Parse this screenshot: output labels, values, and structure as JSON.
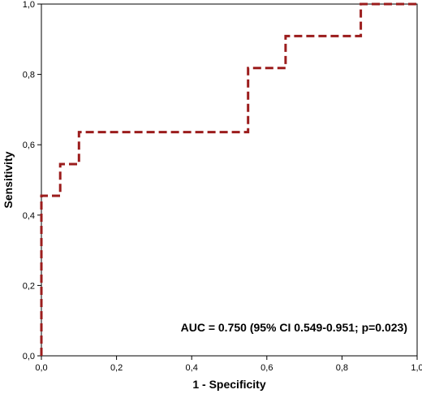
{
  "chart_data": {
    "type": "line",
    "title": "",
    "xlabel": "1 - Specificity",
    "ylabel": "Sensitivity",
    "xlim": [
      0,
      1
    ],
    "ylim": [
      0,
      1
    ],
    "x_ticks": [
      "0,0",
      "0,2",
      "0,4",
      "0,6",
      "0,8",
      "1,0"
    ],
    "y_ticks": [
      "0,0",
      "0,2",
      "0,4",
      "0,6",
      "0,8",
      "1,0"
    ],
    "grid": false,
    "annotation": "AUC = 0.750 (95% CI 0.549-0.951; p=0.023)",
    "series": [
      {
        "color": "#9b1c1c",
        "style": "dashed",
        "x": [
          0.0,
          0.0,
          0.05,
          0.05,
          0.1,
          0.1,
          0.55,
          0.55,
          0.65,
          0.65,
          0.85,
          0.85,
          1.0
        ],
        "y": [
          0.0,
          0.455,
          0.455,
          0.545,
          0.545,
          0.636,
          0.636,
          0.818,
          0.818,
          0.909,
          0.909,
          1.0,
          1.0
        ]
      }
    ]
  }
}
